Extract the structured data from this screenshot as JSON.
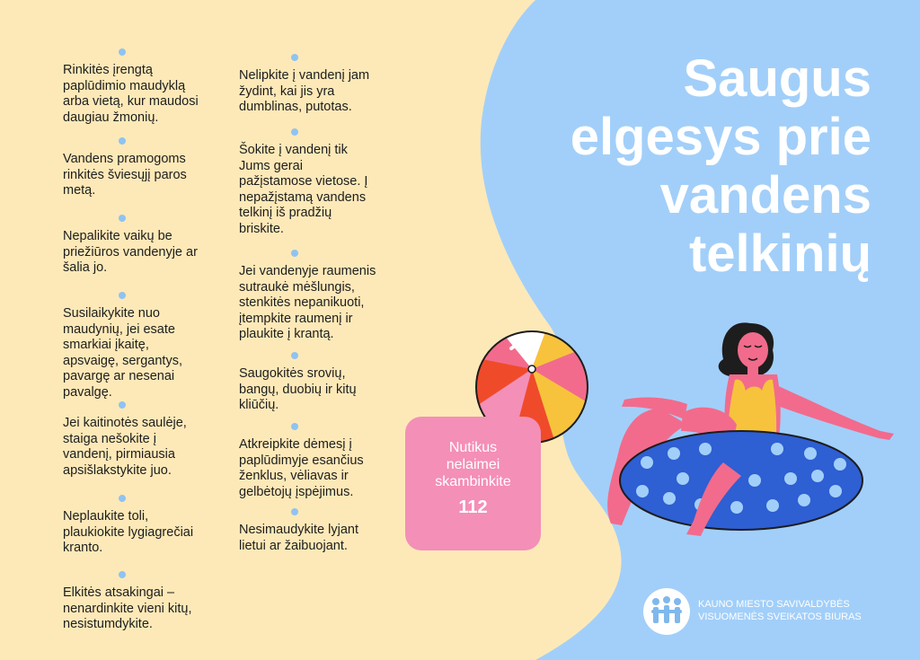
{
  "title": "Saugus\nelgesys prie\nvandens\ntelkinių",
  "tips_left": [
    "Rinkitės įrengtą\npaplūdimio maudyklą\narba vietą, kur maudosi\ndaugiau žmonių.",
    "Vandens pramogoms\nrinkitės šviesųjį paros\nmetą.",
    "Nepalikite vaikų be\npriežiūros vandenyje ar\nšalia jo.",
    "Susilaikykite nuo\nmaudynių, jei esate\nsmarkiai įkaitę,\napsvaigę, sergantys,\npavargę ar nesenai\npavalgę.",
    "Jei kaitinotės saulėje,\nstaiga nešokite į\nvandenį, pirmiausia\napsišlakstykite juo.",
    "Neplaukite toli,\nplaukiokite lygiagrečiai\nkranto.",
    "Elkitės atsakingai –\nnenardinkite vieni kitų,\nnesistumdykite."
  ],
  "tips_right": [
    "Nelipkite į vandenį jam\nžydint, kai jis yra\ndumblinas, putotas.",
    "Šokite į vandenį tik\nJums gerai\npažįstamose vietose. Į\nnepažįstamą vandens\ntelkinį iš pradžių\nbriskite.",
    "Jei vandenyje raumenis\nsutraukė mėšlungis,\nstenkitės nepanikuoti,\nįtempkite raumenį ir\nplaukite į krantą.",
    "Saugokitės srovių,\nbangų, duobių ir kitų\nkliūčių.",
    "Atkreipkite dėmesį į\npaplūdimyje esančius\nženklus, vėliavas ir\ngelbėtojų įspėjimus.",
    "Nesimaudykite lyjant\nlietui ar žaibuojant."
  ],
  "emergency": {
    "label": "Nutikus\nnelaimei\nskambinkite",
    "number": "112"
  },
  "logo": {
    "line1": "KAUNO MIESTO SAVIVALDYBĖS",
    "line2": "VISUOMENĖS SVEIKATOS BIURAS"
  },
  "colors": {
    "background": "#fde9b8",
    "water": "#a2cff9",
    "pink": "#f48fb7",
    "dot": "#8fc3f2",
    "ring": "#2e5fd3",
    "swimsuit": "#f7c33c"
  }
}
